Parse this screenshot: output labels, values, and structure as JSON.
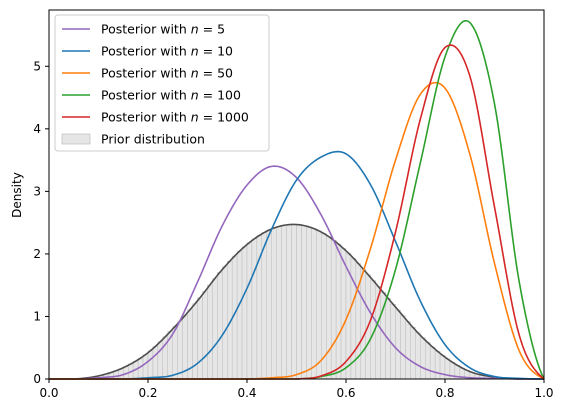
{
  "chart_data": {
    "type": "line",
    "title": "",
    "xlabel": "",
    "ylabel": "Density",
    "xlim": [
      0.0,
      1.0
    ],
    "ylim": [
      0.0,
      5.9
    ],
    "xticks": [
      "0.0",
      "0.2",
      "0.4",
      "0.6",
      "0.8",
      "1.0"
    ],
    "yticks": [
      "0",
      "1",
      "2",
      "3",
      "4",
      "5"
    ],
    "legend_position": "upper-left",
    "grid": false,
    "x": [
      0.0,
      0.05,
      0.1,
      0.15,
      0.2,
      0.25,
      0.3,
      0.35,
      0.4,
      0.45,
      0.5,
      0.55,
      0.6,
      0.65,
      0.7,
      0.75,
      0.8,
      0.85,
      0.9,
      0.95,
      1.0
    ],
    "series": [
      {
        "name": "Posterior with n = 5",
        "legend_prefix": "Posterior with ",
        "legend_var": "n",
        "legend_suffix": " = 5",
        "color": "#9467bd",
        "values": [
          0.0,
          0.0,
          0.02,
          0.07,
          0.28,
          0.72,
          1.55,
          2.45,
          3.1,
          3.4,
          3.22,
          2.62,
          1.8,
          1.05,
          0.5,
          0.2,
          0.07,
          0.02,
          0.01,
          0.0,
          0.0
        ]
      },
      {
        "name": "Posterior with n = 10",
        "legend_prefix": "Posterior with ",
        "legend_var": "n",
        "legend_suffix": " = 10",
        "color": "#1f77b4",
        "values": [
          0.0,
          0.0,
          0.0,
          0.0,
          0.02,
          0.06,
          0.25,
          0.7,
          1.45,
          2.4,
          3.18,
          3.55,
          3.6,
          3.1,
          2.2,
          1.25,
          0.55,
          0.18,
          0.04,
          0.01,
          0.0
        ]
      },
      {
        "name": "Posterior with n = 50",
        "legend_prefix": "Posterior with ",
        "legend_var": "n",
        "legend_suffix": " = 50",
        "color": "#ff7f0e",
        "values": [
          0.0,
          0.0,
          0.0,
          0.0,
          0.0,
          0.0,
          0.0,
          0.0,
          0.0,
          0.02,
          0.07,
          0.3,
          0.95,
          2.1,
          3.5,
          4.55,
          4.65,
          3.6,
          1.85,
          0.45,
          0.0
        ]
      },
      {
        "name": "Posterior with n = 100",
        "legend_prefix": "Posterior with ",
        "legend_var": "n",
        "legend_suffix": " = 100",
        "color": "#2ca02c",
        "values": [
          0.0,
          0.0,
          0.0,
          0.0,
          0.0,
          0.0,
          0.0,
          0.0,
          0.0,
          0.0,
          0.0,
          0.04,
          0.18,
          0.65,
          1.75,
          3.45,
          5.15,
          5.7,
          4.4,
          1.55,
          0.0
        ]
      },
      {
        "name": "Posterior with n = 1000",
        "legend_prefix": "Posterior with ",
        "legend_var": "n",
        "legend_suffix": " = 1000",
        "color": "#d62728",
        "values": [
          0.0,
          0.0,
          0.0,
          0.0,
          0.0,
          0.0,
          0.0,
          0.0,
          0.0,
          0.0,
          0.0,
          0.05,
          0.28,
          0.95,
          2.35,
          4.15,
          5.3,
          4.85,
          2.75,
          0.7,
          0.0
        ]
      }
    ],
    "prior": {
      "name": "Prior distribution",
      "fill_color": "#e6e6e6",
      "edge_color": "#b4b4b4",
      "kde_color": "#4d4d4d",
      "hist_bin_width": 0.01,
      "kde_values": [
        0.0,
        0.0,
        0.05,
        0.18,
        0.42,
        0.8,
        1.25,
        1.75,
        2.15,
        2.4,
        2.47,
        2.35,
        2.05,
        1.62,
        1.15,
        0.7,
        0.35,
        0.12,
        0.03,
        0.0,
        0.0
      ]
    }
  }
}
